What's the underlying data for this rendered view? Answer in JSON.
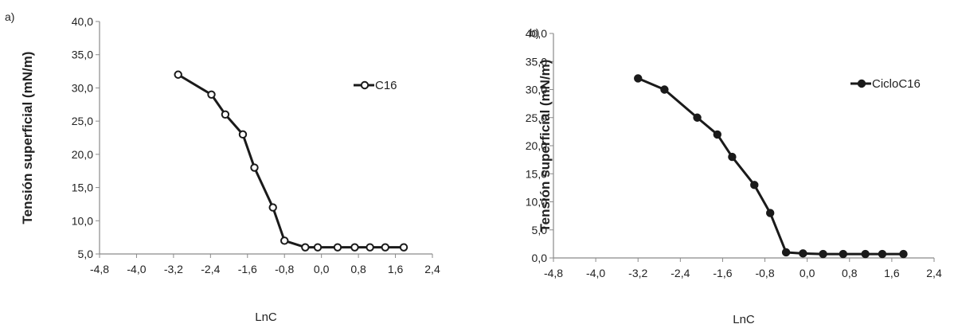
{
  "chart_data": [
    {
      "type": "line",
      "panel_label": "a)",
      "xlabel": "LnC",
      "ylabel": "Tensión superficial (mN/m)",
      "xlim": [
        -4.8,
        2.4
      ],
      "ylim": [
        5.0,
        40.0
      ],
      "x_ticks": [
        "-4,8",
        "-4,0",
        "-3,2",
        "-2,4",
        "-1,6",
        "-0,8",
        "0,0",
        "0,8",
        "1,6",
        "2,4"
      ],
      "y_ticks": [
        "5,0",
        "10,0",
        "15,0",
        "20,0",
        "25,0",
        "30,0",
        "35,0",
        "40,0"
      ],
      "legend_position": "right",
      "grid": false,
      "series": [
        {
          "name": "C16",
          "marker": "open-circle",
          "x": [
            -3.1,
            -2.38,
            -2.08,
            -1.7,
            -1.45,
            -1.05,
            -0.8,
            -0.35,
            -0.08,
            0.35,
            0.72,
            1.05,
            1.38,
            1.78
          ],
          "y": [
            32.0,
            29.0,
            26.0,
            23.0,
            18.0,
            12.0,
            7.0,
            6.0,
            6.0,
            6.0,
            6.0,
            6.0,
            6.0,
            6.0
          ]
        }
      ]
    },
    {
      "type": "line",
      "panel_label": "b)",
      "xlabel": "LnC",
      "ylabel": "Tensión superficial (mN/m)",
      "xlim": [
        -4.8,
        2.4
      ],
      "ylim": [
        0.0,
        40.0
      ],
      "x_ticks": [
        "-4,8",
        "-4,0",
        "-3,2",
        "-2,4",
        "-1,6",
        "-0,8",
        "0,0",
        "0,8",
        "1,6",
        "2,4"
      ],
      "y_ticks": [
        "0,0",
        "5,0",
        "10,0",
        "15,0",
        "20,0",
        "25,0",
        "30,0",
        "35,0",
        "40,0"
      ],
      "legend_position": "right",
      "grid": false,
      "series": [
        {
          "name": "CicloC16",
          "marker": "filled-circle",
          "x": [
            -3.2,
            -2.7,
            -2.08,
            -1.7,
            -1.42,
            -1.0,
            -0.7,
            -0.4,
            -0.08,
            0.3,
            0.68,
            1.1,
            1.42,
            1.82
          ],
          "y": [
            32.0,
            30.0,
            25.0,
            22.0,
            18.0,
            13.0,
            8.0,
            1.0,
            0.8,
            0.7,
            0.7,
            0.7,
            0.7,
            0.7
          ]
        }
      ]
    }
  ]
}
